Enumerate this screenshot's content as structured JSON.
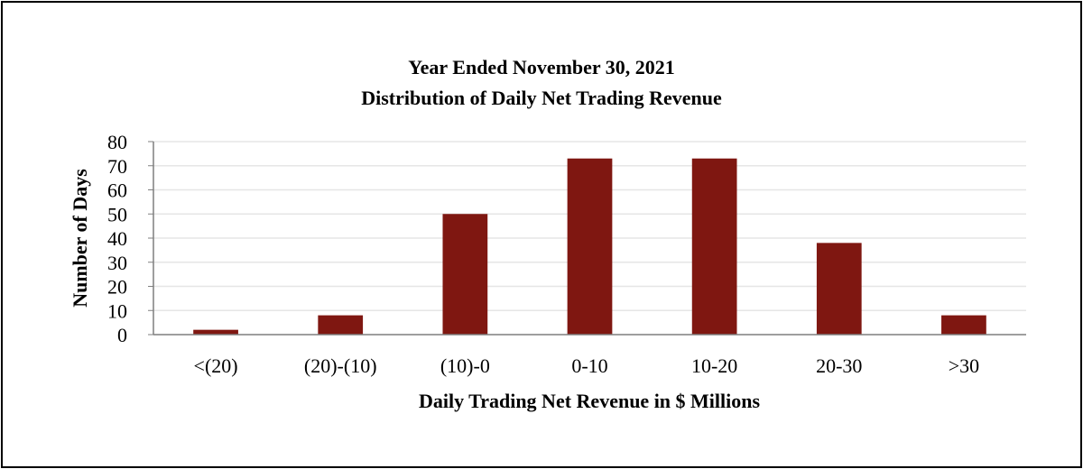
{
  "chart_data": {
    "type": "bar",
    "title": "Year Ended November 30, 2021",
    "subtitle": "Distribution of Daily Net Trading Revenue",
    "xlabel": "Daily Trading Net Revenue in $ Millions",
    "ylabel": "Number of Days",
    "categories": [
      "<(20)",
      "(20)-(10)",
      "(10)-0",
      "0-10",
      "10-20",
      "20-30",
      ">30"
    ],
    "values": [
      2,
      8,
      50,
      73,
      73,
      38,
      8
    ],
    "ylim": [
      0,
      80
    ],
    "yticks": [
      0,
      10,
      20,
      30,
      40,
      50,
      60,
      70,
      80
    ],
    "grid": true,
    "legend": "none",
    "colors": {
      "bar": "#7f1711",
      "grid": "#e6e6e6",
      "axis": "#7f7f7f",
      "text": "#000000"
    }
  }
}
